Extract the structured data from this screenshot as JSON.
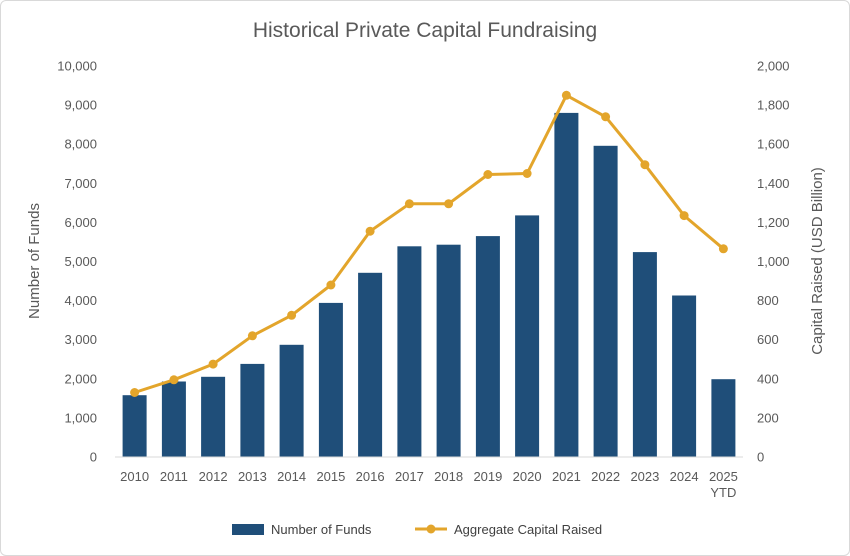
{
  "chart_data": {
    "type": "bar+line",
    "title": "Historical Private Capital Fundraising",
    "categories": [
      "2010",
      "2011",
      "2012",
      "2013",
      "2014",
      "2015",
      "2016",
      "2017",
      "2018",
      "2019",
      "2020",
      "2021",
      "2022",
      "2023",
      "2024",
      "2025"
    ],
    "category_sublabels": {
      "2025": "YTD"
    },
    "series": [
      {
        "name": "Number of Funds",
        "type": "bar",
        "axis": "left",
        "color": "#1f4e79",
        "values": [
          1580,
          1930,
          2050,
          2380,
          2870,
          3940,
          4710,
          5390,
          5430,
          5650,
          6180,
          8800,
          7960,
          5240,
          4130,
          1990
        ]
      },
      {
        "name": "Aggregate Capital Raised",
        "type": "line",
        "axis": "right",
        "color": "#e3a52b",
        "values": [
          330,
          395,
          475,
          620,
          725,
          880,
          1155,
          1295,
          1295,
          1445,
          1450,
          1850,
          1740,
          1495,
          1235,
          1065
        ]
      }
    ],
    "y_left": {
      "label": "Number of Funds",
      "min": 0,
      "max": 10000,
      "ticks": [
        "0",
        "1,000",
        "2,000",
        "3,000",
        "4,000",
        "5,000",
        "6,000",
        "7,000",
        "8,000",
        "9,000",
        "10,000"
      ]
    },
    "y_right": {
      "label": "Capital Raised (USD Billion)",
      "min": 0,
      "max": 2000,
      "ticks": [
        "0",
        "200",
        "400",
        "600",
        "800",
        "1,000",
        "1,200",
        "1,400",
        "1,600",
        "1,800",
        "2,000"
      ]
    },
    "grid": false,
    "legend": {
      "position": "bottom",
      "items": [
        "Number of Funds",
        "Aggregate Capital Raised"
      ]
    }
  }
}
